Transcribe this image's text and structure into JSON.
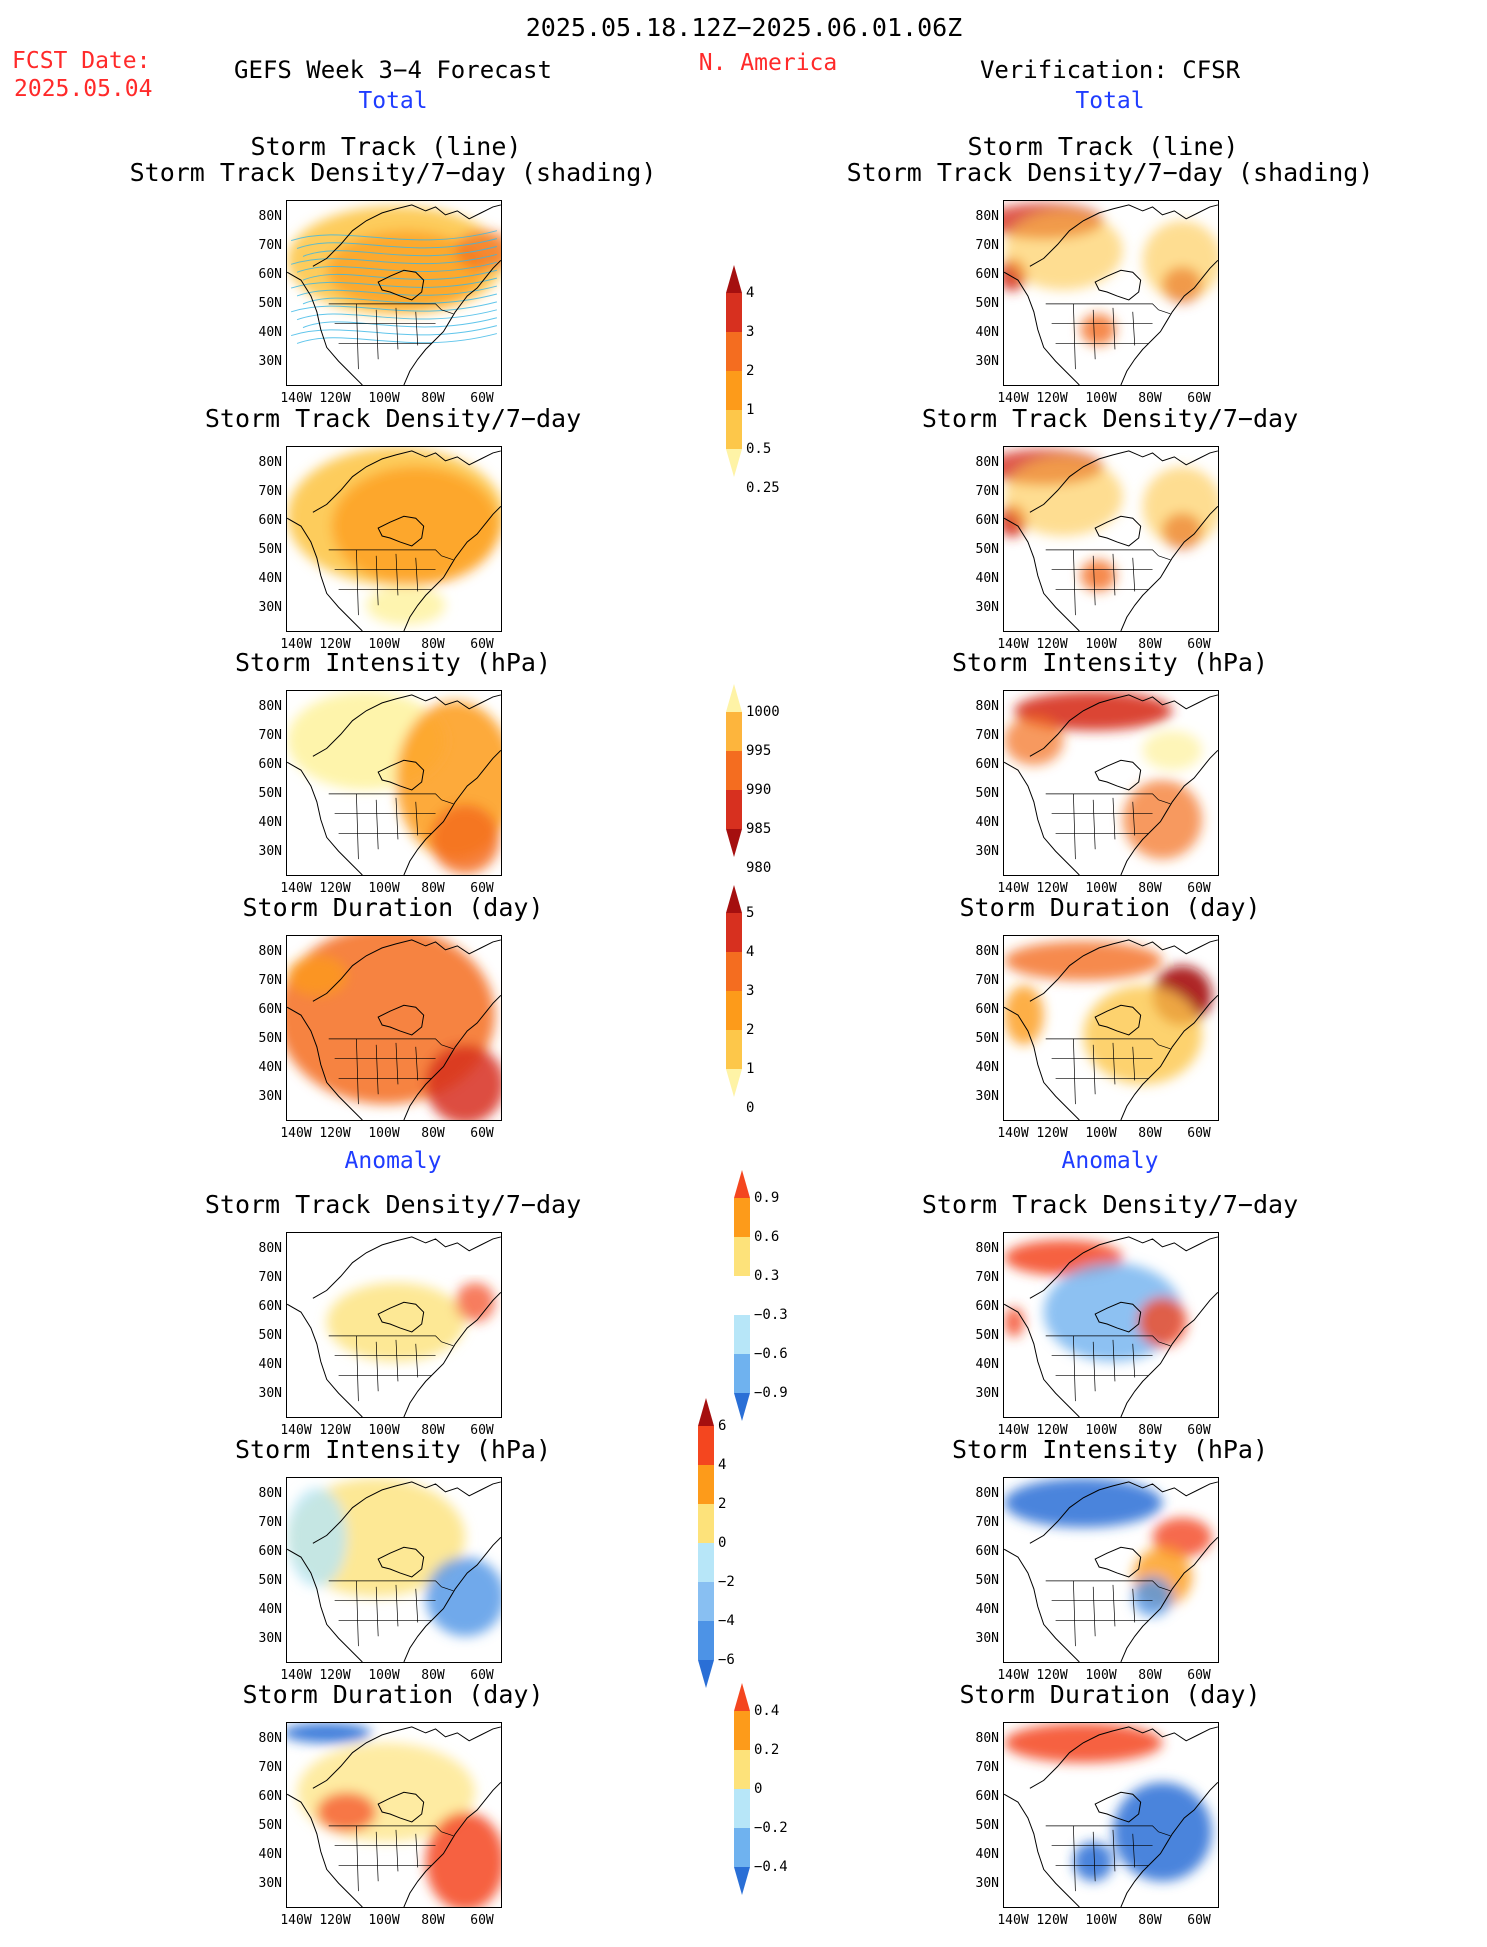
{
  "header": {
    "period": "2025.05.18.12Z−2025.06.01.06Z",
    "fcst_label": "FCST Date:",
    "fcst_date": "2025.05.04",
    "left_title": "GEFS Week 3−4 Forecast",
    "region": "N. America",
    "right_title": "Verification: CFSR",
    "total_left": "Total",
    "total_right": "Total",
    "anomaly_left": "Anomaly",
    "anomaly_right": "Anomaly"
  },
  "axes": {
    "lat_labels": [
      "80N",
      "70N",
      "60N",
      "50N",
      "40N",
      "30N"
    ],
    "lon_labels": [
      "140W",
      "120W",
      "100W",
      "80W",
      "60W"
    ]
  },
  "panels": {
    "p1_title_a": "Storm Track (line)",
    "p1_title_b": "Storm Track Density/7−day (shading)",
    "p2_title": "Storm Track Density/7−day",
    "p3_title": "Storm Intensity (hPa)",
    "p4_title": "Storm Duration (day)",
    "p5_title": "Storm Track Density/7−day",
    "p6_title": "Storm Intensity (hPa)",
    "p7_title": "Storm Duration (day)"
  },
  "colorbars": {
    "density": {
      "labels": [
        "4",
        "3",
        "2",
        "1",
        "0.5",
        "0.25"
      ],
      "colors": [
        "#a50f0f",
        "#d7301f",
        "#f46d20",
        "#fd9b1a",
        "#fdc74a",
        "#fef3a6"
      ]
    },
    "intensity": {
      "labels": [
        "1000",
        "995",
        "990",
        "985",
        "980"
      ],
      "colors": [
        "#fef3a6",
        "#fdb53d",
        "#f46d20",
        "#d7301f",
        "#a50f0f"
      ]
    },
    "duration": {
      "labels": [
        "5",
        "4",
        "3",
        "2",
        "1",
        "0"
      ],
      "colors": [
        "#a50f0f",
        "#d7301f",
        "#f46d20",
        "#fd9b1a",
        "#fdc74a",
        "#fef3a6"
      ]
    },
    "density_anom": {
      "labels": [
        "0.9",
        "0.6",
        "0.3",
        "−0.3",
        "−0.6",
        "−0.9"
      ],
      "colors": [
        "#f4461f",
        "#fd9b1a",
        "#fde27a",
        "#ffffff",
        "#b7e6f8",
        "#6fb2ef",
        "#2a6fd6"
      ]
    },
    "intensity_anom": {
      "labels": [
        "6",
        "4",
        "2",
        "0",
        "−2",
        "−4",
        "−6"
      ],
      "colors": [
        "#a50f0f",
        "#f4461f",
        "#fd9b1a",
        "#fde27a",
        "#b7e6f8",
        "#88bff2",
        "#4d93e6",
        "#2a6fd6"
      ]
    },
    "duration_anom": {
      "labels": [
        "0.4",
        "0.2",
        "0",
        "−0.2",
        "−0.4"
      ],
      "colors": [
        "#f4461f",
        "#fd9b1a",
        "#fde27a",
        "#b7e6f8",
        "#6fb2ef",
        "#2a6fd6"
      ]
    }
  },
  "colors": {
    "title_red": "#ff2a2a",
    "title_blue": "#1f3cff"
  }
}
